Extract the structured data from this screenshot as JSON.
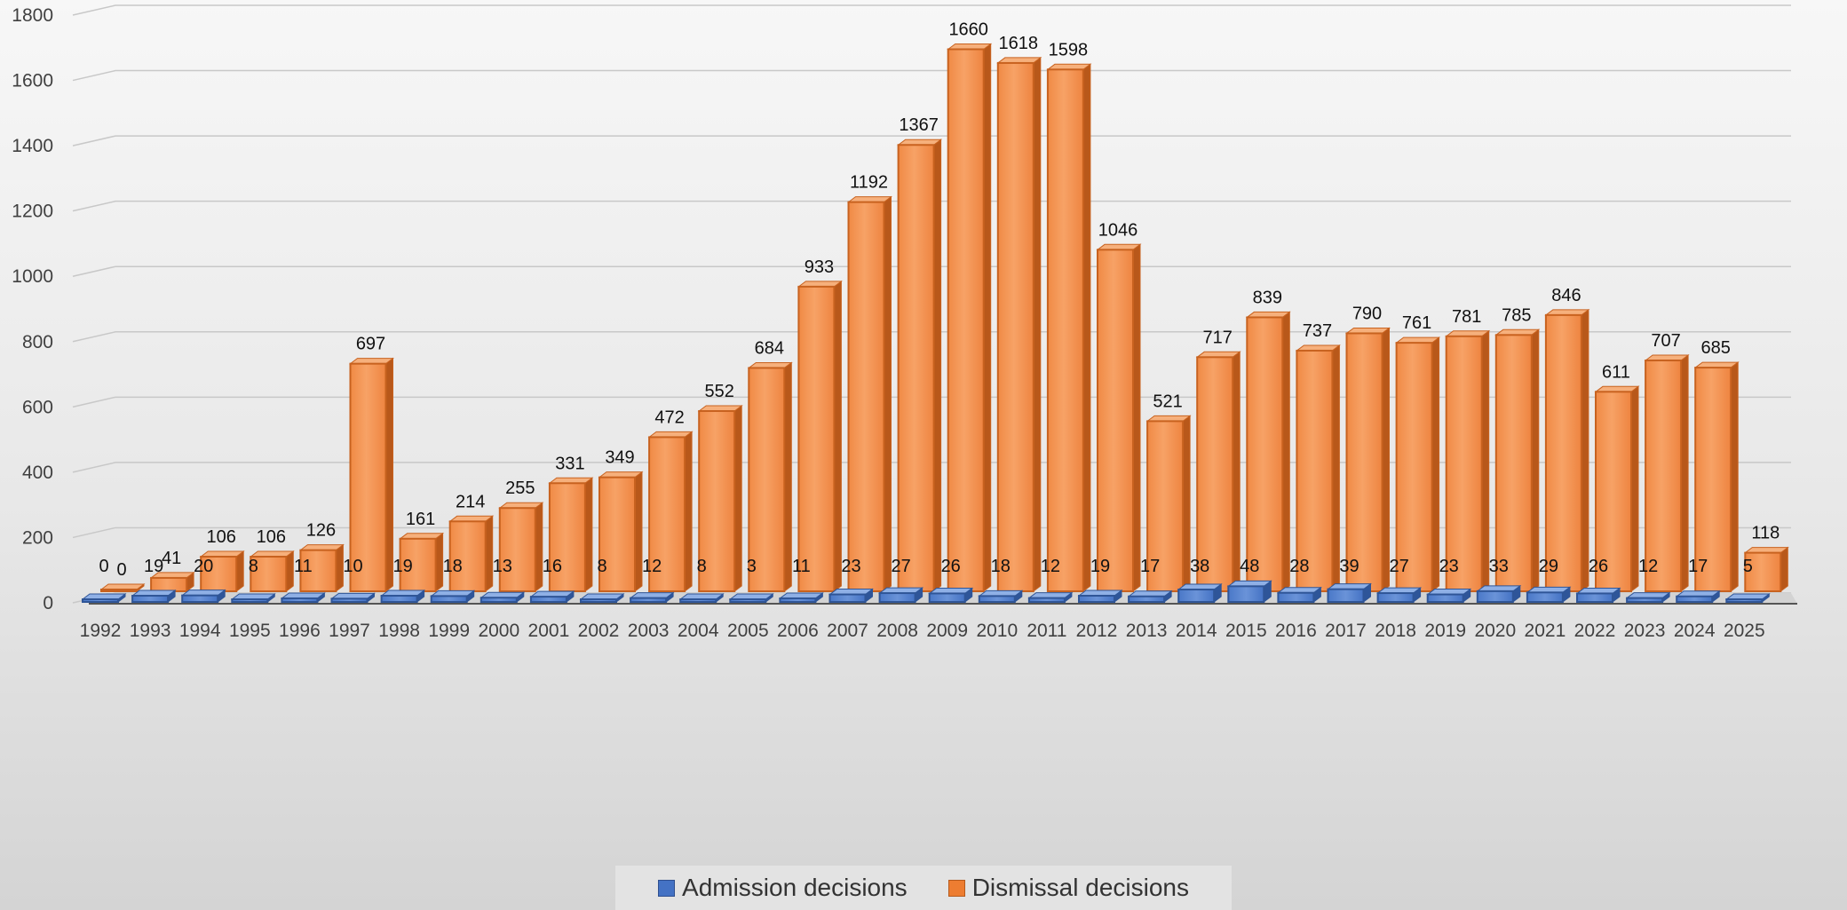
{
  "chart_data": {
    "type": "bar",
    "categories": [
      "1992",
      "1993",
      "1994",
      "1995",
      "1996",
      "1997",
      "1998",
      "1999",
      "2000",
      "2001",
      "2002",
      "2003",
      "2004",
      "2005",
      "2006",
      "2007",
      "2008",
      "2009",
      "2010",
      "2011",
      "2012",
      "2013",
      "2014",
      "2015",
      "2016",
      "2017",
      "2018",
      "2019",
      "2020",
      "2021",
      "2022",
      "2023",
      "2024",
      "2025"
    ],
    "series": [
      {
        "name": "Admission decisions",
        "color": "#4472c4",
        "values": [
          0,
          19,
          20,
          8,
          11,
          10,
          19,
          18,
          13,
          16,
          8,
          12,
          8,
          3,
          11,
          23,
          27,
          26,
          18,
          12,
          19,
          17,
          38,
          48,
          28,
          39,
          27,
          23,
          33,
          29,
          26,
          12,
          17,
          5
        ]
      },
      {
        "name": "Dismissal decisions",
        "color": "#ed7d31",
        "values": [
          0,
          41,
          106,
          106,
          126,
          697,
          161,
          214,
          255,
          331,
          349,
          472,
          552,
          684,
          933,
          1192,
          1367,
          1660,
          1618,
          1598,
          1046,
          521,
          717,
          839,
          737,
          790,
          761,
          781,
          785,
          846,
          611,
          707,
          685,
          118
        ]
      }
    ],
    "yticks": [
      0,
      200,
      400,
      600,
      800,
      1000,
      1200,
      1400,
      1600,
      1800
    ],
    "ylim": [
      0,
      1800
    ],
    "grid": true,
    "legend": "bottom",
    "title": "",
    "xlabel": "",
    "ylabel": ""
  }
}
